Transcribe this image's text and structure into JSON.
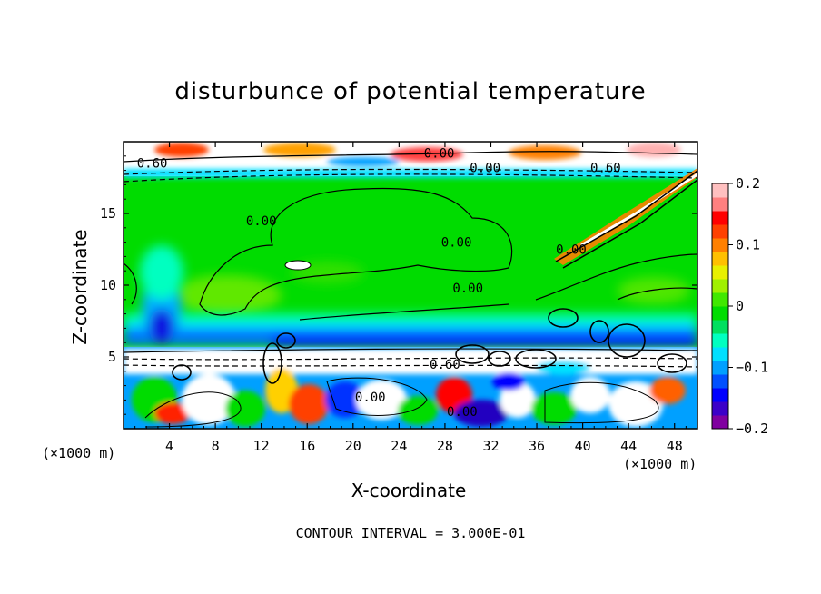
{
  "chart_data": {
    "type": "heatmap",
    "title": "disturbunce of potential temperature",
    "xlabel": "X-coordinate",
    "ylabel": "Z-coordinate",
    "x_unit_left": "(×1000 m)",
    "x_unit_right": "(×1000 m)",
    "footnote": "CONTOUR INTERVAL = 3.000E-01",
    "xlim": [
      0,
      50
    ],
    "ylim": [
      0,
      20
    ],
    "x_ticks": [
      4,
      8,
      12,
      16,
      20,
      24,
      28,
      32,
      36,
      40,
      44,
      48
    ],
    "y_ticks": [
      5,
      10,
      15
    ],
    "colorbar": {
      "range": [
        -0.2,
        0.2
      ],
      "ticks": [
        0.2,
        0.1,
        0,
        -0.1,
        -0.2
      ],
      "tick_labels": [
        "0.2",
        "0.1",
        "0",
        "−0.1",
        "−0.2"
      ],
      "colors": [
        "#8000a0",
        "#3c00c8",
        "#0000ff",
        "#0050ff",
        "#00a0ff",
        "#00e0ff",
        "#00ffc0",
        "#00e060",
        "#00dc00",
        "#40e800",
        "#a0f000",
        "#e8f000",
        "#ffc000",
        "#ff8000",
        "#ff4000",
        "#ff0000",
        "#ff8080",
        "#ffc0c0"
      ]
    },
    "contour_labels": [
      {
        "text": "0.00",
        "x": 27.5,
        "z": 19.2
      },
      {
        "text": "0.00",
        "x": 31.5,
        "z": 18.2
      },
      {
        "text": "0.60",
        "x": 42.0,
        "z": 18.2
      },
      {
        "text": "0.60",
        "x": 2.5,
        "z": 18.5
      },
      {
        "text": "0.00",
        "x": 12.0,
        "z": 14.5
      },
      {
        "text": "0.00",
        "x": 29.0,
        "z": 13.0
      },
      {
        "text": "0.00",
        "x": 30.0,
        "z": 9.8
      },
      {
        "text": "0.00",
        "x": 39.0,
        "z": 12.5
      },
      {
        "text": "0.60",
        "x": 28.0,
        "z": 4.5
      },
      {
        "text": "0.00",
        "x": 21.5,
        "z": 2.2
      },
      {
        "text": "0.00",
        "x": 29.5,
        "z": 1.2
      }
    ],
    "field_regions": [
      {
        "z_range": [
          0,
          5.5
        ],
        "description_value": "mixed strong"
      },
      {
        "z_range": [
          5.5,
          8.5
        ],
        "value": -0.12
      },
      {
        "z_range": [
          8.5,
          17.5
        ],
        "value": 0.0
      },
      {
        "z_range": [
          17.5,
          20
        ],
        "value": 0.15
      }
    ]
  }
}
